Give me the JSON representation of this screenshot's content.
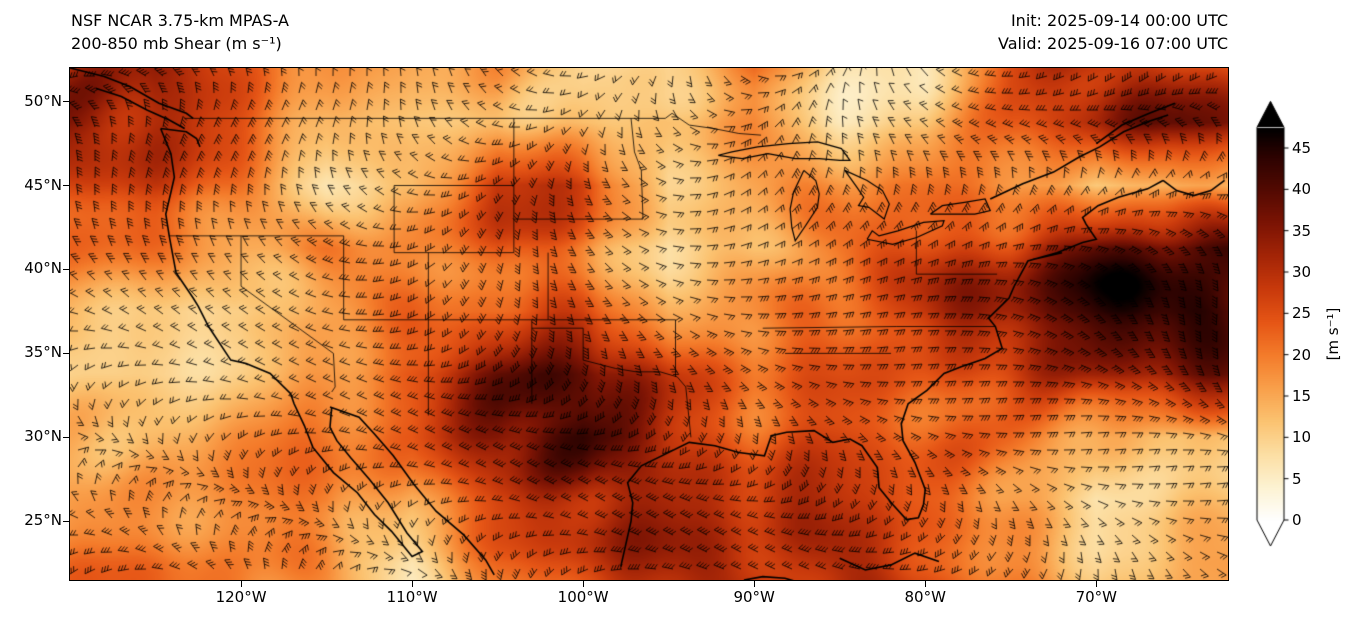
{
  "header": {
    "title_line1": "NSF NCAR 3.75-km MPAS-A",
    "title_line2": "200-850 mb Shear (m s⁻¹)",
    "init_line": "Init: 2025-09-14 00:00 UTC",
    "valid_line": "Valid: 2025-09-16 07:00 UTC"
  },
  "chart_data": {
    "type": "heatmap",
    "title": "NSF NCAR 3.75-km MPAS-A",
    "subtitle": "200-850 mb Shear (m s⁻¹)",
    "annotations": [
      "Init: 2025-09-14 00:00 UTC",
      "Valid: 2025-09-16 07:00 UTC"
    ],
    "overlay": "wind-barbs",
    "projection": "lat-lon map of CONUS and surroundings",
    "x_axis": {
      "ticks": [
        {
          "label": "120°W",
          "lon": -120
        },
        {
          "label": "110°W",
          "lon": -110
        },
        {
          "label": "100°W",
          "lon": -100
        },
        {
          "label": "90°W",
          "lon": -90
        },
        {
          "label": "80°W",
          "lon": -80
        },
        {
          "label": "70°W",
          "lon": -70
        }
      ]
    },
    "y_axis": {
      "ticks": [
        {
          "label": "50°N",
          "lat": 50
        },
        {
          "label": "45°N",
          "lat": 45
        },
        {
          "label": "40°N",
          "lat": 40
        },
        {
          "label": "35°N",
          "lat": 35
        },
        {
          "label": "30°N",
          "lat": 30
        },
        {
          "label": "25°N",
          "lat": 25
        }
      ]
    },
    "extent": {
      "lon_min": -130,
      "lon_max": -62.3,
      "lat_min": 21.5,
      "lat_max": 52
    },
    "colorbar": {
      "label": "[m s⁻¹]",
      "ticks": [
        0,
        5,
        10,
        15,
        20,
        25,
        30,
        35,
        40,
        45
      ],
      "vmin": 0,
      "vmax": 47.5,
      "extend": "both",
      "stops": [
        {
          "v": 0,
          "color": "#ffffff"
        },
        {
          "v": 4,
          "color": "#fdf3d3"
        },
        {
          "v": 8,
          "color": "#fcdfa4"
        },
        {
          "v": 12,
          "color": "#fbc371"
        },
        {
          "v": 16,
          "color": "#f9a04b"
        },
        {
          "v": 20,
          "color": "#f47c2b"
        },
        {
          "v": 24,
          "color": "#e65616"
        },
        {
          "v": 28,
          "color": "#c93a0c"
        },
        {
          "v": 32,
          "color": "#a42507"
        },
        {
          "v": 36,
          "color": "#7c1404"
        },
        {
          "v": 40,
          "color": "#530a02"
        },
        {
          "v": 44,
          "color": "#2d0301"
        },
        {
          "v": 47.5,
          "color": "#000000"
        }
      ]
    },
    "grid": {
      "comment": "Coarse eyeball-sampled 200-850 mb shear field (m/s), rows = lats top to bottom",
      "lons": [
        -130,
        -125,
        -120,
        -115,
        -110,
        -105,
        -100,
        -95,
        -90,
        -85,
        -80,
        -75,
        -70,
        -65
      ],
      "lats": [
        52.5,
        48.75,
        45,
        41.25,
        37.5,
        33.75,
        30,
        26.25,
        22.5
      ],
      "units": "m s⁻¹",
      "values": [
        [
          30,
          35,
          25,
          20,
          15,
          18,
          10,
          8,
          20,
          8,
          5,
          25,
          30,
          25
        ],
        [
          35,
          30,
          22,
          12,
          10,
          15,
          12,
          15,
          18,
          8,
          10,
          22,
          28,
          38
        ],
        [
          30,
          28,
          20,
          8,
          12,
          30,
          28,
          10,
          15,
          18,
          20,
          18,
          10,
          15
        ],
        [
          22,
          18,
          15,
          18,
          20,
          25,
          20,
          8,
          12,
          20,
          25,
          30,
          40,
          45
        ],
        [
          15,
          10,
          8,
          15,
          20,
          22,
          25,
          15,
          18,
          22,
          28,
          35,
          42,
          45
        ],
        [
          12,
          10,
          12,
          18,
          25,
          35,
          38,
          25,
          20,
          22,
          25,
          30,
          35,
          38
        ],
        [
          15,
          15,
          18,
          20,
          22,
          35,
          40,
          30,
          25,
          28,
          25,
          22,
          15,
          10
        ],
        [
          18,
          18,
          20,
          22,
          15,
          25,
          30,
          30,
          28,
          28,
          25,
          18,
          8,
          12
        ],
        [
          20,
          22,
          22,
          18,
          8,
          20,
          28,
          30,
          30,
          30,
          28,
          20,
          12,
          15
        ]
      ]
    }
  }
}
